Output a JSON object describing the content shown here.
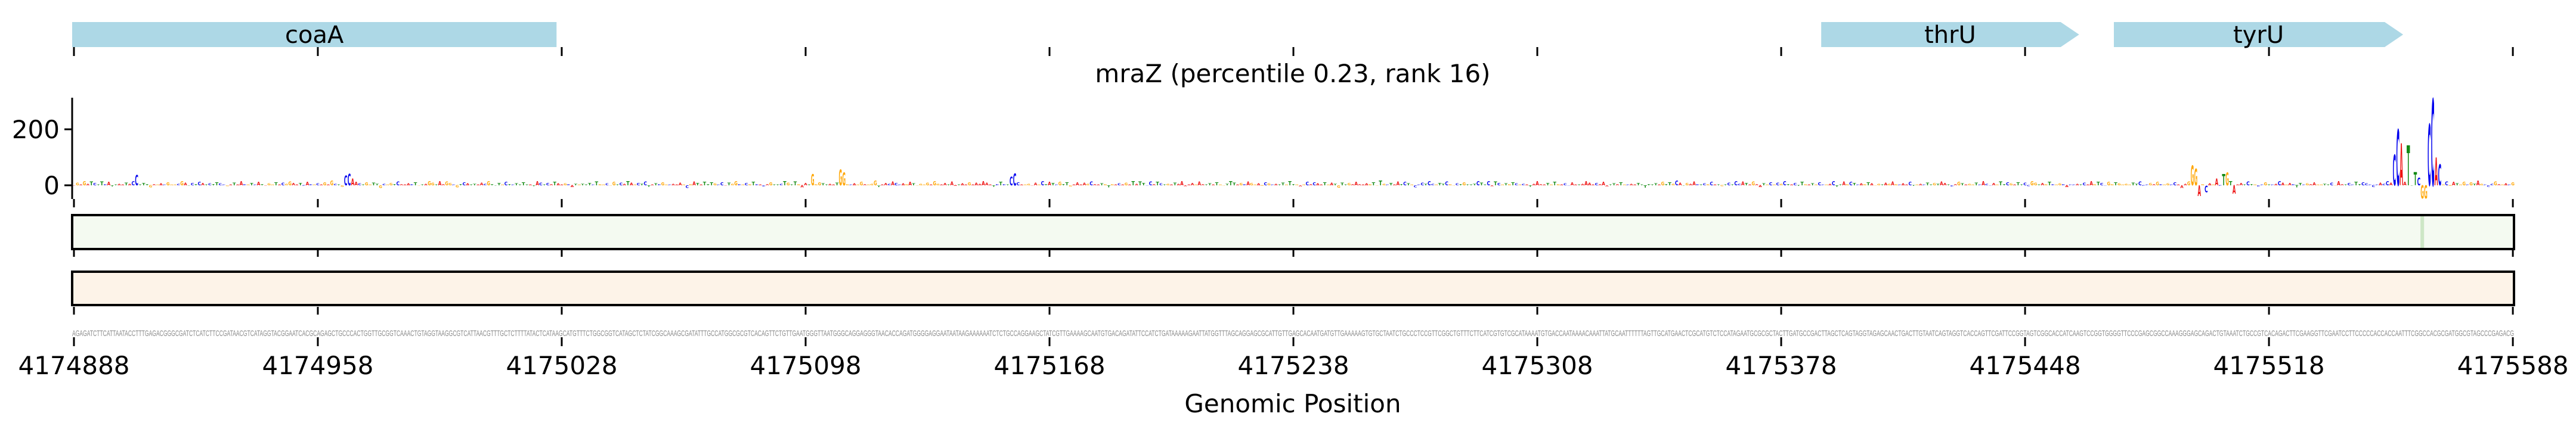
{
  "chart_data": {
    "type": "sequence-logo",
    "title": "mraZ (percentile 0.23, rank 16)",
    "xlabel": "Genomic Position",
    "ylabel": "",
    "xlim": [
      4174888,
      4175588
    ],
    "x_ticks": [
      4174888,
      4174958,
      4175028,
      4175098,
      4175168,
      4175238,
      4175308,
      4175378,
      4175448,
      4175518,
      4175588
    ],
    "x_tick_labels": [
      "4174888",
      "4174958",
      "4175028",
      "4175098",
      "4175168",
      "4175238",
      "4175308",
      "4175378",
      "4175448",
      "4175518",
      "4175588"
    ],
    "ylim": [
      -50,
      313
    ],
    "y_ticks": [
      0,
      200
    ],
    "y_tick_labels": [
      "0",
      "200"
    ],
    "grid": false,
    "genes": [
      {
        "name": "coaA",
        "start": 4174888,
        "end": 4175026,
        "arrow": false
      },
      {
        "name": "thrU",
        "start": 4175390,
        "end": 4175463,
        "arrow": true
      },
      {
        "name": "tyrU",
        "start": 4175474,
        "end": 4175556,
        "arrow": true
      }
    ],
    "base_colors": {
      "A": "#ee1111",
      "C": "#0000ee",
      "G": "#ffa500",
      "T": "#138a13"
    },
    "logo_peaks": [
      {
        "pos": 4174906,
        "base": "C",
        "value": 37
      },
      {
        "pos": 4174966,
        "base": "C",
        "value": 35
      },
      {
        "pos": 4174967,
        "base": "C",
        "value": 42
      },
      {
        "pos": 4174968,
        "base": "A",
        "value": 25
      },
      {
        "pos": 4175100,
        "base": "G",
        "value": 40
      },
      {
        "pos": 4175108,
        "base": "G",
        "value": 57
      },
      {
        "pos": 4175109,
        "base": "G",
        "value": 45
      },
      {
        "pos": 4175157,
        "base": "C",
        "value": 30
      },
      {
        "pos": 4175158,
        "base": "C",
        "value": 43
      },
      {
        "pos": 4175496,
        "base": "G",
        "value": 70
      },
      {
        "pos": 4175497,
        "base": "G",
        "value": 60
      },
      {
        "pos": 4175498,
        "base": "A",
        "value": -38
      },
      {
        "pos": 4175500,
        "base": "C",
        "value": -25
      },
      {
        "pos": 4175503,
        "base": "A",
        "value": 25
      },
      {
        "pos": 4175505,
        "base": "T",
        "value": 40
      },
      {
        "pos": 4175506,
        "base": "G",
        "value": 45
      },
      {
        "pos": 4175508,
        "base": "A",
        "value": -30
      },
      {
        "pos": 4175554,
        "base": "C",
        "value": 110
      },
      {
        "pos": 4175555,
        "base": "C",
        "value": 200
      },
      {
        "pos": 4175556,
        "base": "A",
        "value": 150
      },
      {
        "pos": 4175558,
        "base": "T",
        "value": 143
      },
      {
        "pos": 4175560,
        "base": "T",
        "value": 47
      },
      {
        "pos": 4175561,
        "base": "C",
        "value": 28
      },
      {
        "pos": 4175562,
        "base": "G",
        "value": -47
      },
      {
        "pos": 4175563,
        "base": "G",
        "value": -47
      },
      {
        "pos": 4175564,
        "base": "C",
        "value": 219
      },
      {
        "pos": 4175565,
        "base": "C",
        "value": 309
      },
      {
        "pos": 4175566,
        "base": "A",
        "value": 100
      },
      {
        "pos": 4175567,
        "base": "C",
        "value": 75
      }
    ],
    "track1": {
      "color": "#f4faf1",
      "highlight_color": "#cde7c6",
      "highlight_pos": 4175562
    },
    "track2": {
      "color": "#fdf3e8"
    },
    "sequence": "AGAGATCTTCATTAATACCTTTGAGACGGGCGATCTCATCTTCCGATAACGTCATAGGTACGGAATCACGCAGAGCTGCCCACTGGTTGCGGTCAAACTGTAGGTAAGGCGTCATTAACGTTTGCTCTTTTATACTCATAAGCATGTTTCTGGCGGTCATAGCTCTATCGGCAAAGCGATATTTGCCATGGCGCGTCACAGTTCTGTTGAATGGGTTAATGGGCAGGAGGGTAACACCAGATGGGGAGGAATAATAAGAAAAAATCTCTGCCAGGAAGCTATCGTTGAAAAGCAATGTGACAGATATTCCATCTGATAAAAAGAATTATGGTTTAGCAGGAGCGCATTGTTGAGCACAATGATGTTGAAAAAGTGTGCTAATCTGCCCTCCGTTCGGCTGTTTCTTCATCGTGTCGCATAAAATGTGACCAATAAAACAAATTATGCAATTTTTTAGTTGCATGAACTCGCATGTCTCCATAGAATGCGCGCTACTTGATGCCGACTTAGCTCAGTAGGTAGAGCAACTGACTTGTAATCAGTAGGTCACCAGTTCGATTCCGGTAGTCGGCACCATCAAGTCCGGTGGGGTTCCCGAGCGGCCAAAGGGAGCAGACTGTAAATCTGCCGTCACAGACTTCGAAGGTTCGAATCCTTCCCCCACCACCAATTTCGGCCACGCGATGGCGTAGCCCGAGACG",
    "gene_color": "#add8e6"
  }
}
